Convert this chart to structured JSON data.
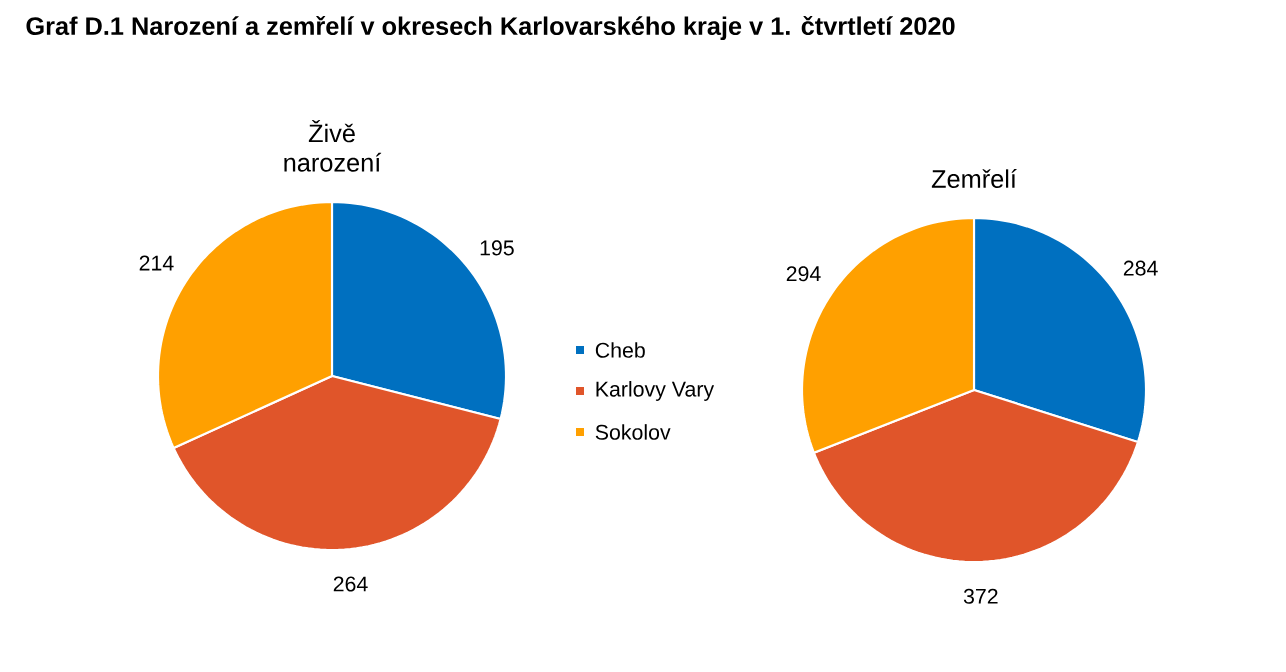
{
  "chart_data": [
    {
      "type": "pie",
      "title": "Živě narození",
      "annotations": [
        "Graf D.1 Narození a zemřelí v okresech Karlovarského kraje v 1. čtvrtletí 2020"
      ],
      "categories": [
        "Cheb",
        "Karlovy Vary",
        "Sokolov"
      ],
      "values": [
        195,
        264,
        214
      ],
      "colors": [
        "#0070c0",
        "#e0552a",
        "#ffa000"
      ],
      "data_labels": true,
      "legend": "right"
    },
    {
      "type": "pie",
      "title": "Zemřelí",
      "categories": [
        null,
        null,
        null
      ],
      "values": [
        284,
        372,
        294
      ],
      "colors": [
        "#0070c0",
        "#e0552a",
        "#ffa000"
      ],
      "data_labels": true
    }
  ]
}
